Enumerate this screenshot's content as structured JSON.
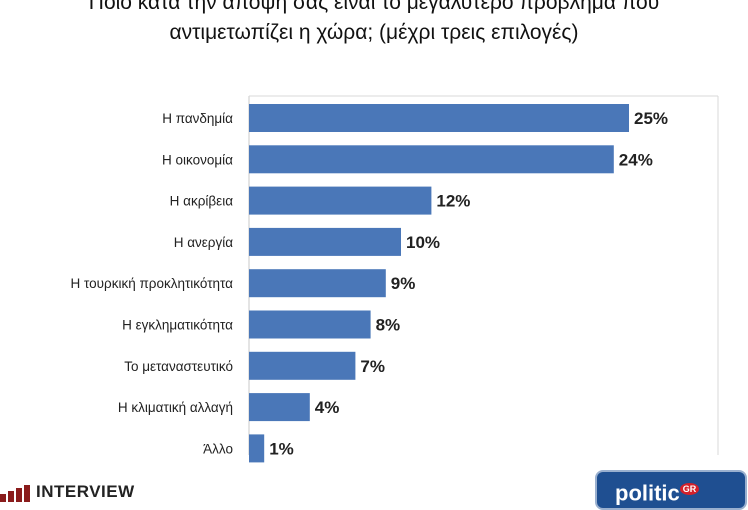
{
  "title_lines": [
    "Ποιο κατά την άποψή σας είναι το μεγαλύτερο πρόβλημα που",
    "αντιμετωπίζει η χώρα; (μέχρι τρεις επιλογές)"
  ],
  "chart_data": {
    "type": "bar",
    "orientation": "horizontal",
    "categories": [
      "Η πανδημία",
      "Η οικονομία",
      "Η ακρίβεια",
      "Η ανεργία",
      "Η τουρκική προκλητικότητα",
      "Η εγκληματικότητα",
      "Το μεταναστευτικό",
      "Η κλιματική αλλαγή",
      "Άλλο"
    ],
    "values": [
      25,
      24,
      12,
      10,
      9,
      8,
      7,
      4,
      1
    ],
    "value_labels": [
      "25%",
      "24%",
      "12%",
      "10%",
      "9%",
      "8%",
      "7%",
      "4%",
      "1%"
    ],
    "unit": "%",
    "xlim": [
      0,
      25
    ],
    "grid": true,
    "bar_color": "#4a77b8"
  },
  "logos": {
    "left_text": "INTERVIEW",
    "right_text": "politic",
    "right_suffix": "GR"
  }
}
